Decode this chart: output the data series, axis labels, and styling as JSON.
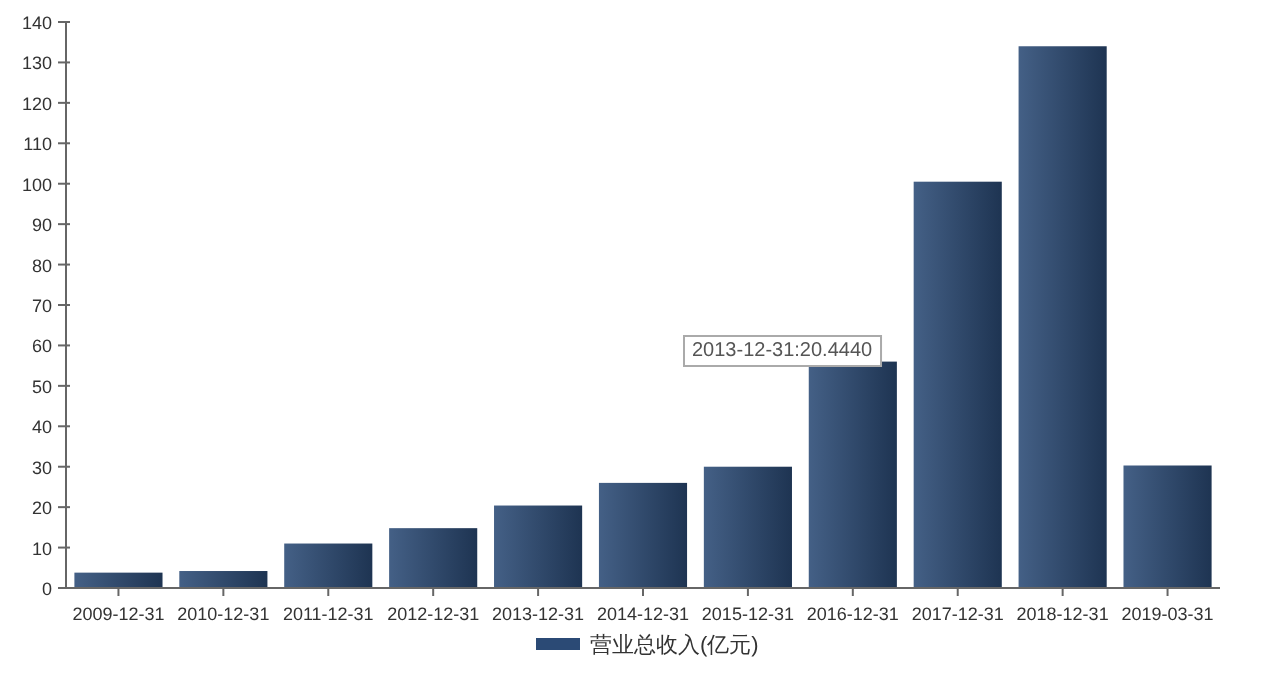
{
  "chart_data": {
    "type": "bar",
    "categories": [
      "2009-12-31",
      "2010-12-31",
      "2011-12-31",
      "2012-12-31",
      "2013-12-31",
      "2014-12-31",
      "2015-12-31",
      "2016-12-31",
      "2017-12-31",
      "2018-12-31",
      "2019-03-31"
    ],
    "series": [
      {
        "name": "营业总收入(亿元)",
        "color": "#2b4a75",
        "values": [
          3.8,
          4.2,
          11,
          14.8,
          20.4,
          26,
          30,
          56,
          100.5,
          134,
          30.3
        ]
      }
    ],
    "ylim": [
      0,
      140
    ],
    "yticks": [
      0,
      10,
      20,
      30,
      40,
      50,
      60,
      70,
      80,
      90,
      100,
      110,
      120,
      130,
      140
    ],
    "grid": false,
    "legend": "bottom",
    "annotations": [
      "2013-12-31:20.4440"
    ]
  }
}
